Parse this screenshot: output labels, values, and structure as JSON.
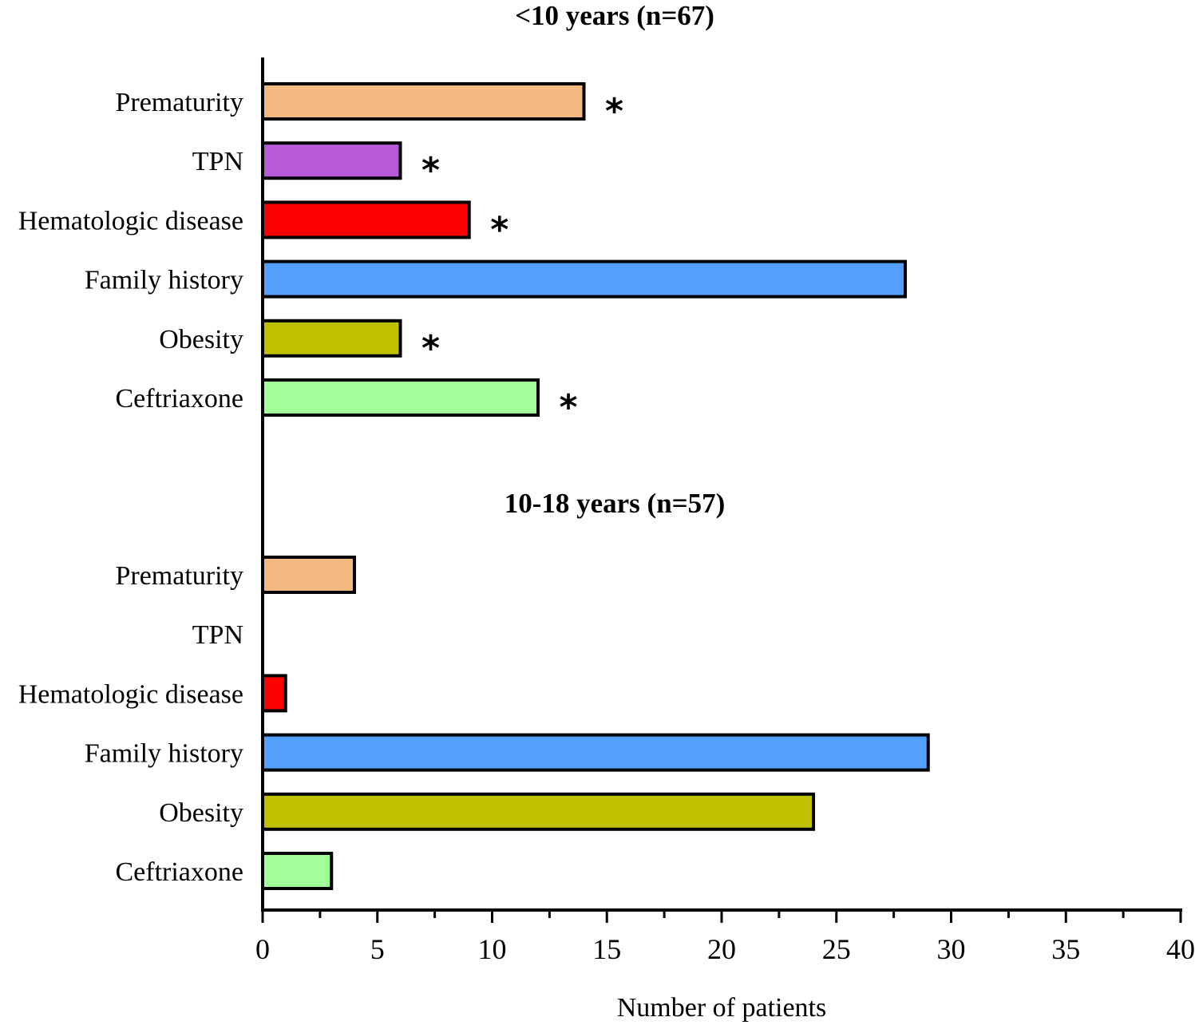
{
  "chart_data": {
    "type": "bar",
    "orientation": "horizontal",
    "xlabel": "Number of patients",
    "xlim": [
      0,
      40
    ],
    "x_ticks": [
      "0",
      "5",
      "10",
      "15",
      "20",
      "25",
      "30",
      "35",
      "40"
    ],
    "categories": [
      "Prematurity",
      "TPN",
      "Hematologic disease",
      "Family history",
      "Obesity",
      "Ceftriaxone"
    ],
    "colors": {
      "Prematurity": "#F2B880",
      "TPN": "#B65AD8",
      "Hematologic disease": "#FF0000",
      "Family history": "#559FFC",
      "Obesity": "#BFC000",
      "Ceftriaxone": "#A2FE98"
    },
    "panels": [
      {
        "title": "<10 years (n=67)",
        "values": [
          14,
          6,
          9,
          28,
          6,
          12
        ],
        "significance_marker": "*",
        "significant": [
          true,
          true,
          true,
          false,
          true,
          true
        ]
      },
      {
        "title": "10-18 years (n=57)",
        "values": [
          4,
          0,
          1,
          29,
          24,
          3
        ],
        "significance_marker": "*",
        "significant": [
          false,
          false,
          false,
          false,
          false,
          false
        ]
      }
    ],
    "grid": false,
    "legend": "none"
  }
}
